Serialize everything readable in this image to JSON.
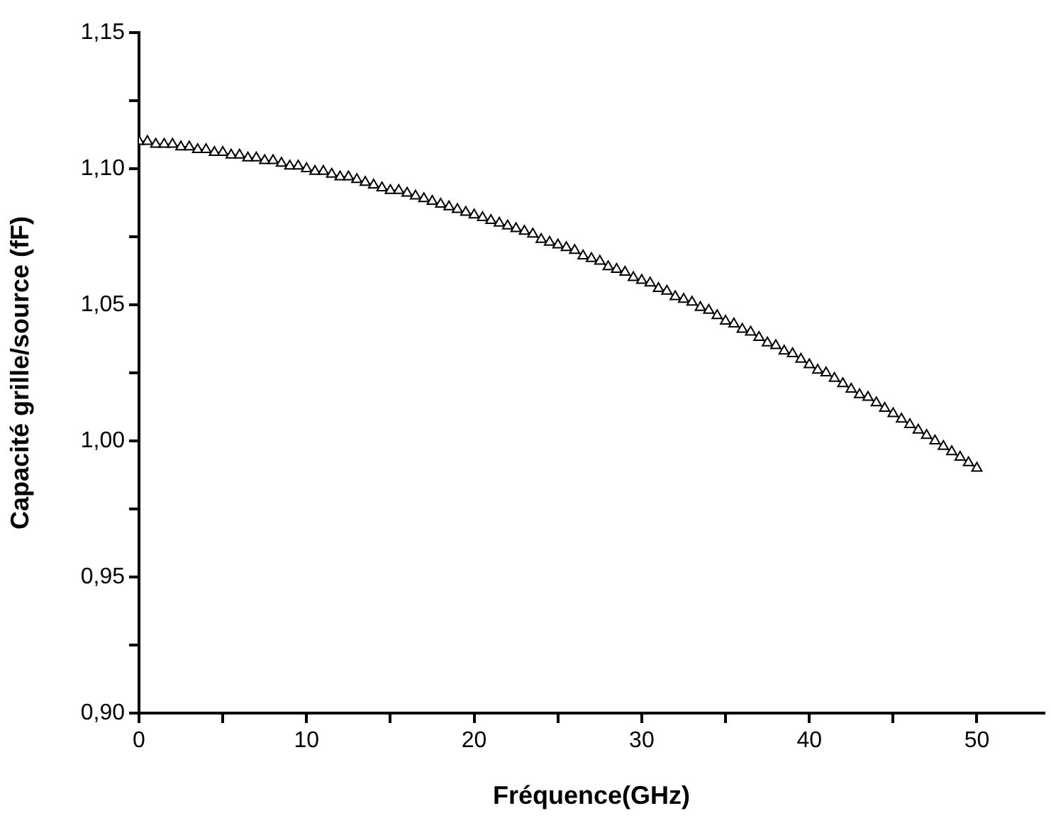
{
  "chart_data": {
    "type": "line",
    "xlabel": "Fréquence(GHz)",
    "ylabel": "Capacité grille/source (fF)",
    "x": [
      0,
      0.5,
      1,
      1.5,
      2,
      2.5,
      3,
      3.5,
      4,
      4.5,
      5,
      5.5,
      6,
      6.5,
      7,
      7.5,
      8,
      8.5,
      9,
      9.5,
      10,
      10.5,
      11,
      11.5,
      12,
      12.5,
      13,
      13.5,
      14,
      14.5,
      15,
      15.5,
      16,
      16.5,
      17,
      17.5,
      18,
      18.5,
      19,
      19.5,
      20,
      20.5,
      21,
      21.5,
      22,
      22.5,
      23,
      23.5,
      24,
      24.5,
      25,
      25.5,
      26,
      26.5,
      27,
      27.5,
      28,
      28.5,
      29,
      29.5,
      30,
      30.5,
      31,
      31.5,
      32,
      32.5,
      33,
      33.5,
      34,
      34.5,
      35,
      35.5,
      36,
      36.5,
      37,
      37.5,
      38,
      38.5,
      39,
      39.5,
      40,
      40.5,
      41,
      41.5,
      42,
      42.5,
      43,
      43.5,
      44,
      44.5,
      45,
      45.5,
      46,
      46.5,
      47,
      47.5,
      48,
      48.5,
      49,
      49.5,
      50
    ],
    "series": [
      {
        "color": "#000000",
        "values": [
          1.11,
          1.11,
          1.109,
          1.109,
          1.109,
          1.108,
          1.108,
          1.107,
          1.107,
          1.106,
          1.106,
          1.105,
          1.105,
          1.104,
          1.104,
          1.103,
          1.103,
          1.102,
          1.101,
          1.101,
          1.1,
          1.099,
          1.099,
          1.098,
          1.097,
          1.097,
          1.096,
          1.095,
          1.094,
          1.093,
          1.092,
          1.092,
          1.091,
          1.09,
          1.089,
          1.088,
          1.087,
          1.086,
          1.085,
          1.084,
          1.083,
          1.082,
          1.081,
          1.08,
          1.079,
          1.078,
          1.077,
          1.076,
          1.074,
          1.073,
          1.072,
          1.071,
          1.07,
          1.068,
          1.067,
          1.066,
          1.064,
          1.063,
          1.062,
          1.06,
          1.059,
          1.058,
          1.056,
          1.055,
          1.053,
          1.052,
          1.051,
          1.049,
          1.048,
          1.046,
          1.044,
          1.043,
          1.041,
          1.04,
          1.038,
          1.036,
          1.035,
          1.033,
          1.032,
          1.03,
          1.028,
          1.026,
          1.025,
          1.023,
          1.021,
          1.019,
          1.017,
          1.016,
          1.014,
          1.012,
          1.01,
          1.008,
          1.006,
          1.004,
          1.002,
          1.0,
          0.998,
          0.996,
          0.994,
          0.992,
          0.99
        ]
      }
    ],
    "xlim": [
      0,
      54
    ],
    "xticks": [
      0,
      {
        "value": 5,
        "label": null
      },
      10,
      {
        "value": 15,
        "label": null
      },
      20,
      {
        "value": 25,
        "label": null
      },
      30,
      {
        "value": 35,
        "label": null
      },
      40,
      {
        "value": 45,
        "label": null
      },
      50
    ],
    "ylim": [
      0.9,
      1.15
    ],
    "yticks": [
      {
        "value": 0.9,
        "label": "0,90"
      },
      {
        "value": 0.925,
        "label": null
      },
      {
        "value": 0.95,
        "label": "0,95"
      },
      {
        "value": 0.975,
        "label": null
      },
      {
        "value": 1.0,
        "label": "1,00"
      },
      {
        "value": 1.025,
        "label": null
      },
      {
        "value": 1.05,
        "label": "1,05"
      },
      {
        "value": 1.075,
        "label": null
      },
      {
        "value": 1.1,
        "label": "1,10"
      },
      {
        "value": 1.125,
        "label": null
      },
      {
        "value": 1.15,
        "label": "1,15"
      }
    ],
    "grid": false,
    "legend": false,
    "marker": "triangle",
    "line_style": "solid"
  }
}
